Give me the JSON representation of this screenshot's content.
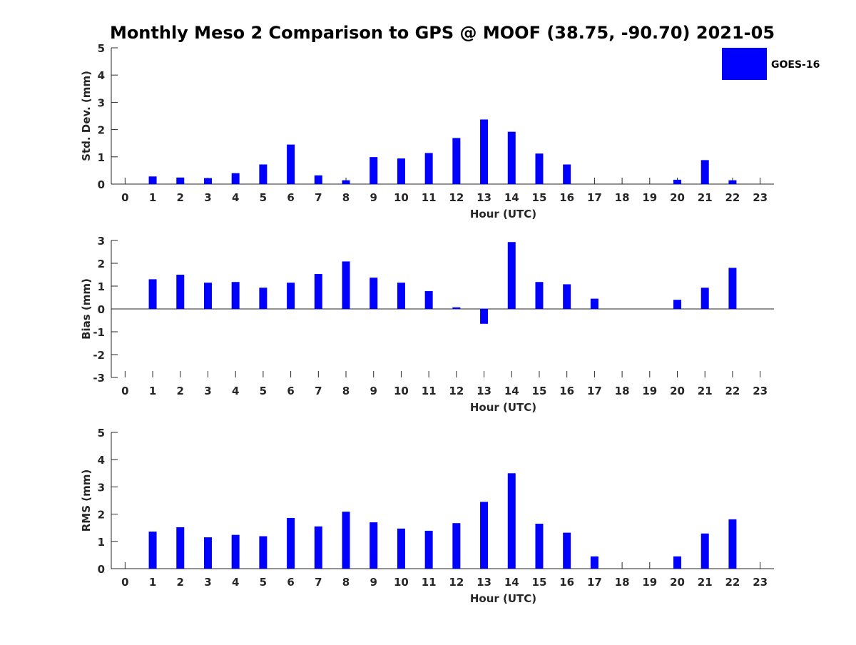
{
  "title": "Monthly Meso 2 Comparison to GPS @ MOOF (38.75, -90.70) 2021-05",
  "legend": {
    "label": "GOES-16",
    "color": "#0000ff",
    "placement": "top-right"
  },
  "chart_data": [
    {
      "type": "bar",
      "xlabel": "Hour (UTC)",
      "ylabel": "Std. Dev. (mm)",
      "ylim": [
        0,
        5
      ],
      "yticks": [
        "0",
        "1",
        "2",
        "3",
        "4",
        "5"
      ],
      "xticks": [
        "0",
        "1",
        "2",
        "3",
        "4",
        "5",
        "6",
        "7",
        "8",
        "9",
        "10",
        "11",
        "12",
        "13",
        "14",
        "15",
        "16",
        "17",
        "18",
        "19",
        "20",
        "21",
        "22",
        "23"
      ],
      "x": [
        0,
        1,
        2,
        3,
        4,
        5,
        6,
        7,
        8,
        9,
        10,
        11,
        12,
        13,
        14,
        15,
        16,
        17,
        18,
        19,
        20,
        21,
        22,
        23
      ],
      "values": [
        null,
        0.28,
        0.24,
        0.22,
        0.4,
        0.72,
        1.45,
        0.32,
        0.14,
        0.99,
        0.94,
        1.14,
        1.69,
        2.37,
        1.92,
        1.12,
        0.72,
        null,
        null,
        null,
        0.16,
        0.88,
        0.14,
        null
      ],
      "series": [
        {
          "name": "GOES-16"
        }
      ]
    },
    {
      "type": "bar",
      "xlabel": "Hour (UTC)",
      "ylabel": "Bias (mm)",
      "ylim": [
        -3,
        3
      ],
      "yticks": [
        "-3",
        "-2",
        "-1",
        "0",
        "1",
        "2",
        "3"
      ],
      "xticks": [
        "0",
        "1",
        "2",
        "3",
        "4",
        "5",
        "6",
        "7",
        "8",
        "9",
        "10",
        "11",
        "12",
        "13",
        "14",
        "15",
        "16",
        "17",
        "18",
        "19",
        "20",
        "21",
        "22",
        "23"
      ],
      "x": [
        0,
        1,
        2,
        3,
        4,
        5,
        6,
        7,
        8,
        9,
        10,
        11,
        12,
        13,
        14,
        15,
        16,
        17,
        18,
        19,
        20,
        21,
        22,
        23
      ],
      "values": [
        null,
        1.3,
        1.5,
        1.15,
        1.18,
        0.93,
        1.15,
        1.53,
        2.08,
        1.37,
        1.15,
        0.78,
        0.07,
        -0.65,
        2.93,
        1.18,
        1.08,
        0.45,
        null,
        null,
        0.4,
        0.93,
        1.8,
        null
      ]
    },
    {
      "type": "bar",
      "xlabel": "Hour (UTC)",
      "ylabel": "RMS (mm)",
      "ylim": [
        0,
        5
      ],
      "yticks": [
        "0",
        "1",
        "2",
        "3",
        "4",
        "5"
      ],
      "xticks": [
        "0",
        "1",
        "2",
        "3",
        "4",
        "5",
        "6",
        "7",
        "8",
        "9",
        "10",
        "11",
        "12",
        "13",
        "14",
        "15",
        "16",
        "17",
        "18",
        "19",
        "20",
        "21",
        "22",
        "23"
      ],
      "x": [
        0,
        1,
        2,
        3,
        4,
        5,
        6,
        7,
        8,
        9,
        10,
        11,
        12,
        13,
        14,
        15,
        16,
        17,
        18,
        19,
        20,
        21,
        22,
        23
      ],
      "values": [
        null,
        1.36,
        1.52,
        1.15,
        1.24,
        1.19,
        1.86,
        1.55,
        2.09,
        1.7,
        1.47,
        1.39,
        1.67,
        2.45,
        3.5,
        1.65,
        1.32,
        0.45,
        null,
        null,
        0.45,
        1.29,
        1.81,
        null
      ]
    }
  ]
}
